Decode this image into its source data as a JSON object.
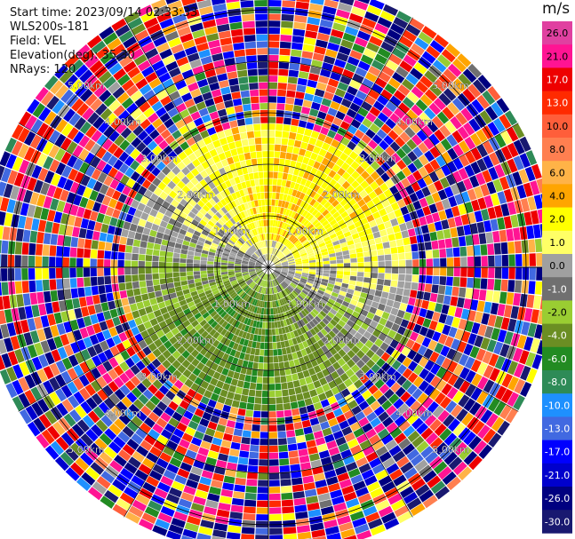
{
  "header": {
    "start_time": "Start time: 2023/09/14 02:33:33",
    "instrument": "WLS200s-181",
    "field": "Field: VEL",
    "elevation": "Elevation(deg): 35.30",
    "nrays": "NRays: 120"
  },
  "colorbar": {
    "unit": "m/s",
    "levels": [
      {
        "label": "26.0",
        "color": "#e040a0"
      },
      {
        "label": "21.0",
        "color": "#ff1493"
      },
      {
        "label": "17.0",
        "color": "#ee0000"
      },
      {
        "label": "13.0",
        "color": "#ff2a00"
      },
      {
        "label": "10.0",
        "color": "#ff5e3a"
      },
      {
        "label": "8.0",
        "color": "#ff7f50"
      },
      {
        "label": "6.0",
        "color": "#ffb347"
      },
      {
        "label": "4.0",
        "color": "#ffa500"
      },
      {
        "label": "2.0",
        "color": "#ffff00"
      },
      {
        "label": "1.0",
        "color": "#ffff66"
      },
      {
        "label": "0.0",
        "color": "#a0a0a0"
      },
      {
        "label": "-1.0",
        "color": "#707070"
      },
      {
        "label": "-2.0",
        "color": "#9acd32"
      },
      {
        "label": "-4.0",
        "color": "#6b8e23"
      },
      {
        "label": "-6.0",
        "color": "#228b22"
      },
      {
        "label": "-8.0",
        "color": "#2e8b57"
      },
      {
        "label": "-10.0",
        "color": "#1e90ff"
      },
      {
        "label": "-13.0",
        "color": "#4169e1"
      },
      {
        "label": "-17.0",
        "color": "#0000ff"
      },
      {
        "label": "-21.0",
        "color": "#0000cd"
      },
      {
        "label": "-26.0",
        "color": "#000080"
      },
      {
        "label": "-30.0",
        "color": "#191970"
      }
    ]
  },
  "chart_data": {
    "type": "heatmap",
    "projection": "polar-ppi",
    "field": "VEL",
    "nrays": 120,
    "range_rings_km": [
      1.0,
      2.0,
      3.0,
      4.0,
      5.0
    ],
    "ring_labels": [
      "1.00km",
      "2.00km",
      "3.00km",
      "4.00km",
      "5.00km"
    ],
    "max_range_km": 5.6,
    "vmin": -30.0,
    "vmax": 26.0,
    "grid": true
  }
}
